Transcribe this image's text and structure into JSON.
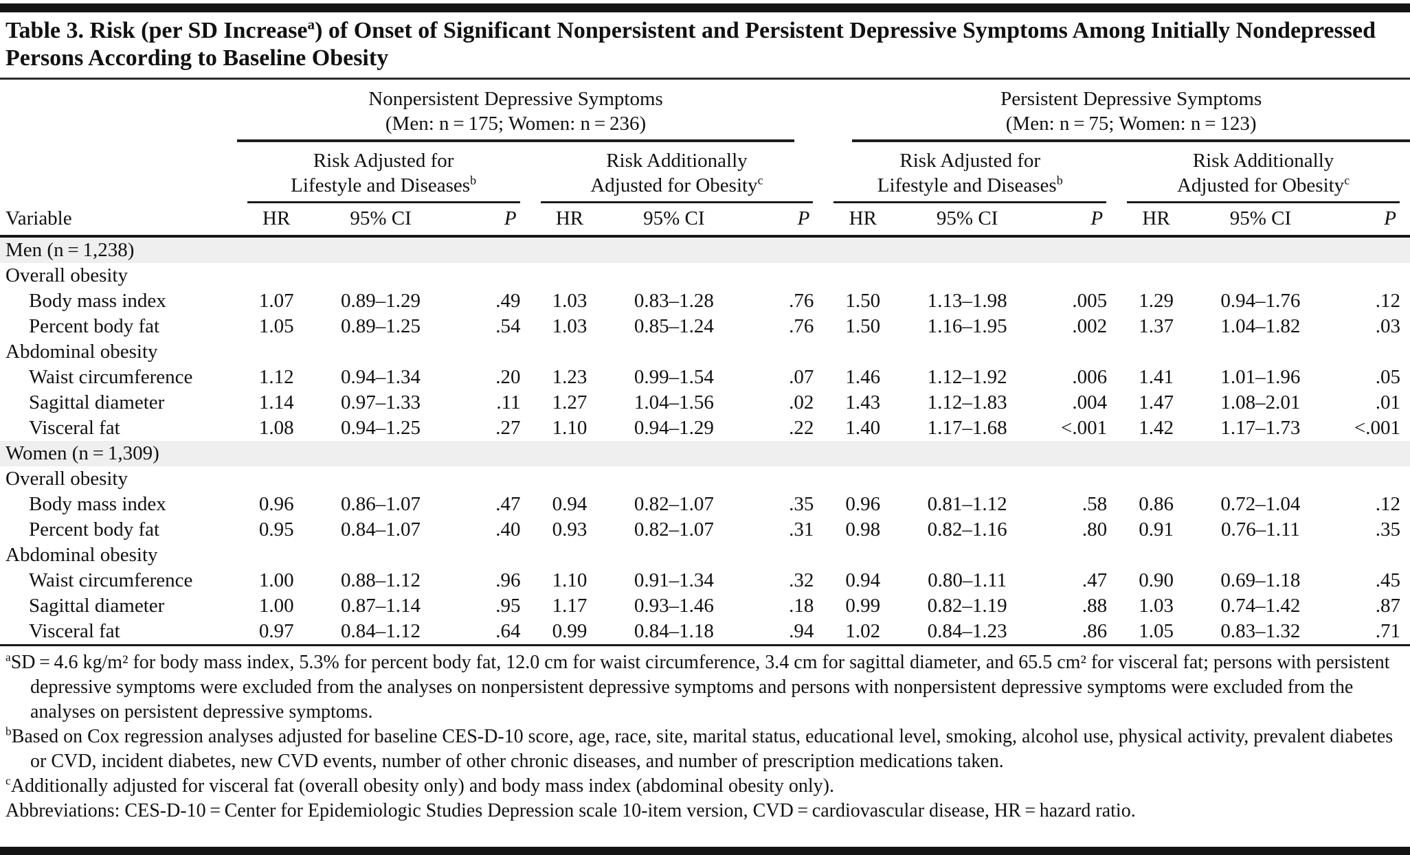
{
  "title": {
    "prefix": "Table 3. Risk (per SD Increase",
    "sup": "a",
    "suffix": ") of Onset of Significant Nonpersistent and Persistent Depressive Symptoms Among Initially Nondepressed Persons According to Baseline Obesity"
  },
  "table": {
    "variable_header": "Variable",
    "col_headers": {
      "hr": "HR",
      "ci": "95% CI",
      "p": "P"
    },
    "groups": [
      {
        "line1": "Nonpersistent Depressive Symptoms",
        "line2": "(Men: n = 175; Women: n = 236)"
      },
      {
        "line1": "Persistent Depressive Symptoms",
        "line2": "(Men: n = 75; Women: n = 123)"
      }
    ],
    "subgroups": [
      {
        "line1": "Risk Adjusted for",
        "line2": "Lifestyle and Diseases",
        "sup": "b"
      },
      {
        "line1": "Risk Additionally",
        "line2": "Adjusted for Obesity",
        "sup": "c"
      }
    ],
    "sections": [
      {
        "group_row": "Men (n = 1,238)",
        "subsections": [
          {
            "header": "Overall obesity",
            "rows": [
              {
                "label": "Body mass index",
                "values": [
                  "1.07",
                  "0.89–1.29",
                  ".49",
                  "1.03",
                  "0.83–1.28",
                  ".76",
                  "1.50",
                  "1.13–1.98",
                  ".005",
                  "1.29",
                  "0.94–1.76",
                  ".12"
                ]
              },
              {
                "label": "Percent body fat",
                "values": [
                  "1.05",
                  "0.89–1.25",
                  ".54",
                  "1.03",
                  "0.85–1.24",
                  ".76",
                  "1.50",
                  "1.16–1.95",
                  ".002",
                  "1.37",
                  "1.04–1.82",
                  ".03"
                ]
              }
            ]
          },
          {
            "header": "Abdominal obesity",
            "rows": [
              {
                "label": "Waist circumference",
                "values": [
                  "1.12",
                  "0.94–1.34",
                  ".20",
                  "1.23",
                  "0.99–1.54",
                  ".07",
                  "1.46",
                  "1.12–1.92",
                  ".006",
                  "1.41",
                  "1.01–1.96",
                  ".05"
                ]
              },
              {
                "label": "Sagittal diameter",
                "values": [
                  "1.14",
                  "0.97–1.33",
                  ".11",
                  "1.27",
                  "1.04–1.56",
                  ".02",
                  "1.43",
                  "1.12–1.83",
                  ".004",
                  "1.47",
                  "1.08–2.01",
                  ".01"
                ]
              },
              {
                "label": "Visceral fat",
                "values": [
                  "1.08",
                  "0.94–1.25",
                  ".27",
                  "1.10",
                  "0.94–1.29",
                  ".22",
                  "1.40",
                  "1.17–1.68",
                  "<.001",
                  "1.42",
                  "1.17–1.73",
                  "<.001"
                ]
              }
            ]
          }
        ]
      },
      {
        "group_row": "Women (n = 1,309)",
        "subsections": [
          {
            "header": "Overall obesity",
            "rows": [
              {
                "label": "Body mass index",
                "values": [
                  "0.96",
                  "0.86–1.07",
                  ".47",
                  "0.94",
                  "0.82–1.07",
                  ".35",
                  "0.96",
                  "0.81–1.12",
                  ".58",
                  "0.86",
                  "0.72–1.04",
                  ".12"
                ]
              },
              {
                "label": "Percent body fat",
                "values": [
                  "0.95",
                  "0.84–1.07",
                  ".40",
                  "0.93",
                  "0.82–1.07",
                  ".31",
                  "0.98",
                  "0.82–1.16",
                  ".80",
                  "0.91",
                  "0.76–1.11",
                  ".35"
                ]
              }
            ]
          },
          {
            "header": "Abdominal obesity",
            "rows": [
              {
                "label": "Waist circumference",
                "values": [
                  "1.00",
                  "0.88–1.12",
                  ".96",
                  "1.10",
                  "0.91–1.34",
                  ".32",
                  "0.94",
                  "0.80–1.11",
                  ".47",
                  "0.90",
                  "0.69–1.18",
                  ".45"
                ]
              },
              {
                "label": "Sagittal diameter",
                "values": [
                  "1.00",
                  "0.87–1.14",
                  ".95",
                  "1.17",
                  "0.93–1.46",
                  ".18",
                  "0.99",
                  "0.82–1.19",
                  ".88",
                  "1.03",
                  "0.74–1.42",
                  ".87"
                ]
              },
              {
                "label": "Visceral fat",
                "values": [
                  "0.97",
                  "0.84–1.12",
                  ".64",
                  "0.99",
                  "0.84–1.18",
                  ".94",
                  "1.02",
                  "0.84–1.23",
                  ".86",
                  "1.05",
                  "0.83–1.32",
                  ".71"
                ]
              }
            ]
          }
        ]
      }
    ]
  },
  "footnotes": [
    {
      "sup": "a",
      "text": "SD = 4.6 kg/m² for body mass index, 5.3% for percent body fat, 12.0 cm for waist circumference, 3.4 cm for sagittal diameter, and 65.5 cm² for visceral fat; persons with persistent depressive symptoms were excluded from the analyses on nonpersistent depressive symptoms and persons with nonpersistent depressive symptoms were excluded from the analyses on persistent depressive symptoms."
    },
    {
      "sup": "b",
      "text": "Based on Cox regression analyses adjusted for baseline CES-D-10 score, age, race, site, marital status, educational level, smoking, alcohol use, physical activity, prevalent diabetes or CVD, incident diabetes, new CVD events, number of other chronic diseases, and number of prescription medications taken."
    },
    {
      "sup": "c",
      "text": "Additionally adjusted for visceral fat (overall obesity only) and body mass index (abdominal obesity only)."
    }
  ],
  "abbreviations": "Abbreviations: CES-D-10 = Center for Epidemiologic Studies Depression scale 10-item version, CVD = cardiovascular disease, HR = hazard ratio.",
  "colors": {
    "shaded_row": "#efefef",
    "rule": "#161616",
    "text": "#111111"
  }
}
